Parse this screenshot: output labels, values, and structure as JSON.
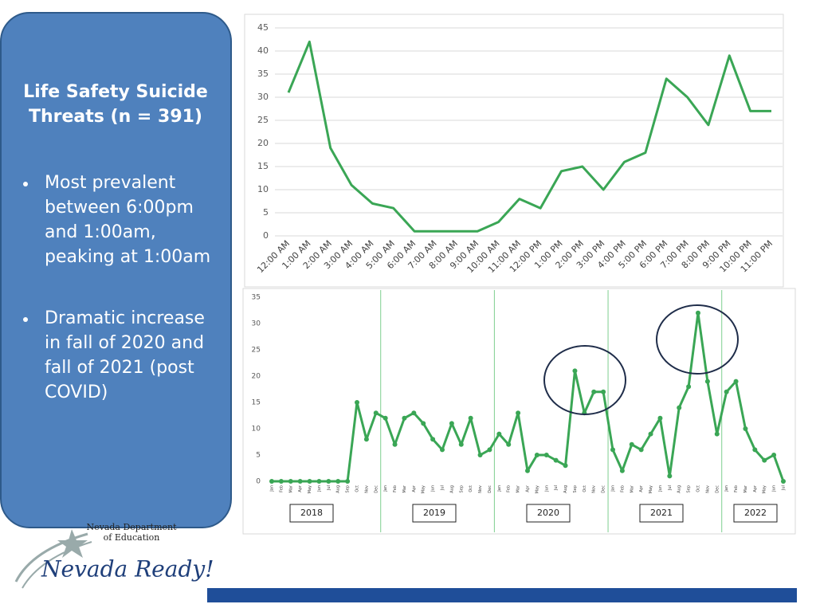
{
  "panel": {
    "title": "Life Safety Suicide Threats (n = 391)",
    "bullets": [
      "Most prevalent between 6:00pm and 1:00am, peaking at 1:00am",
      "Dramatic increase in fall of 2020 and fall of 2021 (post COVID)"
    ]
  },
  "logo": {
    "org": "Nevada Department of Education",
    "name": "Nevada Ready!"
  },
  "chart_data": [
    {
      "type": "line",
      "color": "#3aa655",
      "grid": true,
      "categories": [
        "12:00 AM",
        "1:00 AM",
        "2:00 AM",
        "3:00 AM",
        "4:00 AM",
        "5:00 AM",
        "6:00 AM",
        "7:00 AM",
        "8:00 AM",
        "9:00 AM",
        "10:00 AM",
        "11:00 AM",
        "12:00 PM",
        "1:00 PM",
        "2:00 PM",
        "3:00 PM",
        "4:00 PM",
        "5:00 PM",
        "6:00 PM",
        "7:00 PM",
        "8:00 PM",
        "9:00 PM",
        "10:00 PM",
        "11:00 PM"
      ],
      "values": [
        31,
        42,
        19,
        11,
        7,
        6,
        1,
        1,
        1,
        1,
        3,
        8,
        6,
        14,
        15,
        10,
        16,
        18,
        34,
        30,
        24,
        39,
        27,
        27
      ],
      "ylim": [
        0,
        45
      ],
      "yticks": [
        0,
        5,
        10,
        15,
        20,
        25,
        30,
        35,
        40,
        45
      ]
    },
    {
      "type": "line",
      "color": "#3aa655",
      "markers": true,
      "categories": [
        "Jan",
        "Feb",
        "Mar",
        "Apr",
        "May",
        "Jun",
        "Jul",
        "Aug",
        "Sep",
        "Oct",
        "Nov",
        "Dec",
        "Jan",
        "Feb",
        "Mar",
        "Apr",
        "May",
        "Jun",
        "Jul",
        "Aug",
        "Sep",
        "Oct",
        "Nov",
        "Dec",
        "Jan",
        "Feb",
        "Mar",
        "Apr",
        "May",
        "Jun",
        "Jul",
        "Aug",
        "Sep",
        "Oct",
        "Nov",
        "Dec",
        "Jan",
        "Feb",
        "Mar",
        "Apr",
        "May",
        "Jun",
        "Jul",
        "Aug",
        "Sep",
        "Oct",
        "Nov",
        "Dec",
        "Jan",
        "Feb",
        "Mar",
        "Apr",
        "May",
        "Jun",
        "Jul"
      ],
      "values": [
        0,
        0,
        0,
        0,
        0,
        0,
        0,
        0,
        0,
        15,
        8,
        13,
        12,
        7,
        12,
        13,
        11,
        8,
        6,
        11,
        7,
        12,
        5,
        6,
        9,
        7,
        13,
        2,
        5,
        5,
        4,
        3,
        21,
        13,
        17,
        17,
        6,
        2,
        7,
        6,
        9,
        12,
        1,
        14,
        18,
        32,
        19,
        9,
        17,
        19,
        10,
        6,
        4,
        5,
        0
      ],
      "ylim": [
        0,
        35
      ],
      "yticks": [
        0,
        5,
        10,
        15,
        20,
        25,
        30,
        35
      ],
      "annotations": [
        "2018",
        "2019",
        "2020",
        "2021",
        "2022"
      ]
    }
  ]
}
